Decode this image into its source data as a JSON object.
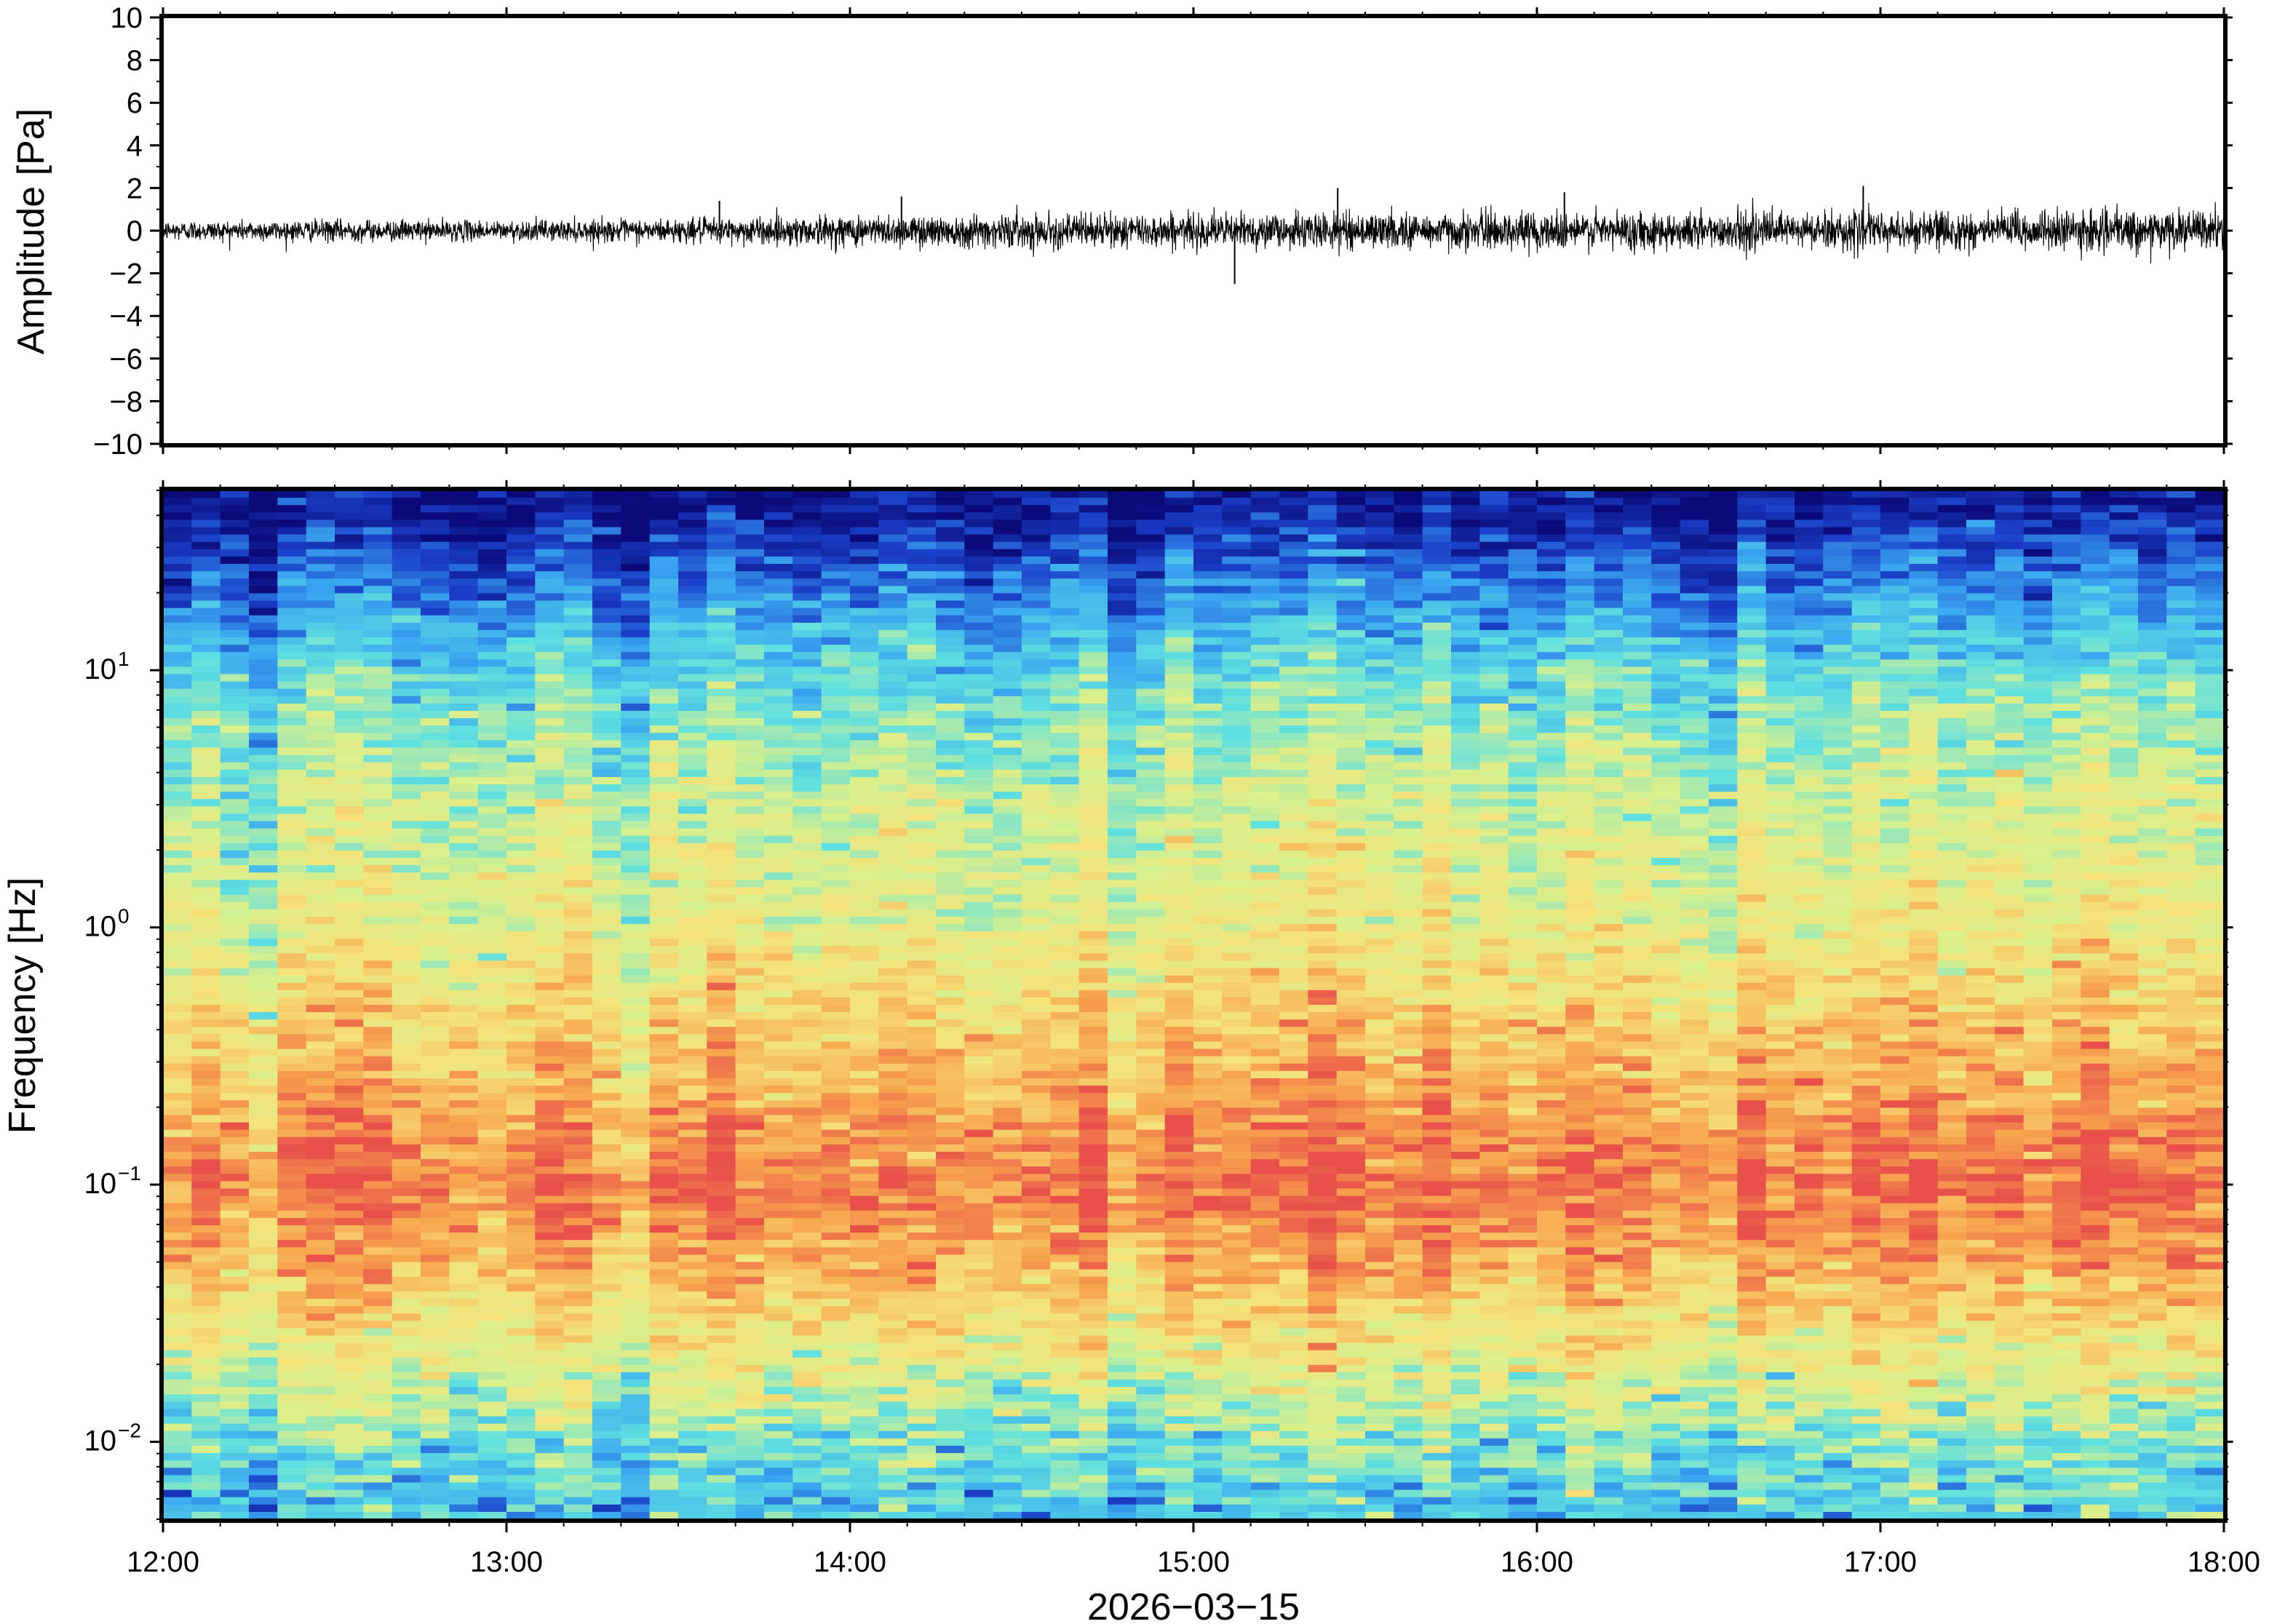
{
  "chart_data": [
    {
      "type": "line",
      "panel": "waveform",
      "ylabel": "Amplitude [Pa]",
      "ylim": [
        -10,
        10
      ],
      "yticks": [
        10,
        8,
        6,
        4,
        2,
        0,
        -2,
        -4,
        -6,
        -8,
        -10
      ],
      "ytick_labels": [
        "10",
        "8",
        "6",
        "4",
        "2",
        "0",
        "−2",
        "−4",
        "−6",
        "−8",
        "−10"
      ],
      "x_range": [
        "12:00",
        "18:00"
      ],
      "series": [
        {
          "envelope_hours": [
            0,
            0.5,
            1,
            1.5,
            2,
            2.5,
            3,
            3.5,
            4,
            4.5,
            5,
            5.5,
            6
          ],
          "envelope_amplitude": [
            0.5,
            0.55,
            0.5,
            0.6,
            0.8,
            0.85,
            0.85,
            0.9,
            0.95,
            0.95,
            0.95,
            1.0,
            1.0
          ],
          "max_spikes": [
            {
              "hour": 1.62,
              "value": 1.4
            },
            {
              "hour": 2.15,
              "value": 1.6
            },
            {
              "hour": 3.12,
              "value": -2.5
            },
            {
              "hour": 3.42,
              "value": 2.0
            },
            {
              "hour": 4.08,
              "value": 1.8
            },
            {
              "hour": 4.95,
              "value": 2.1
            }
          ]
        }
      ]
    },
    {
      "type": "heatmap",
      "panel": "spectrogram",
      "ylabel": "Frequency [Hz]",
      "yscale": "log",
      "ylim": [
        0.005,
        50
      ],
      "yticks": [
        10,
        1,
        0.1,
        0.01
      ],
      "ytick_labels": [
        {
          "base": "10",
          "exp": "1"
        },
        {
          "base": "10",
          "exp": "0"
        },
        {
          "base": "10",
          "exp": "−1"
        },
        {
          "base": "10",
          "exp": "−2"
        }
      ],
      "xlabel": "2026−03−15",
      "x": [
        "12:00",
        "13:00",
        "14:00",
        "15:00",
        "16:00",
        "17:00",
        "18:00"
      ],
      "colormap": [
        "#0a0a78",
        "#1a3fc8",
        "#3aa6f0",
        "#5fe0e0",
        "#d8f08c",
        "#f5e27a",
        "#f8a64e",
        "#e8504a"
      ],
      "intensity_profile": [
        {
          "freq_hz": 0.006,
          "level": 0.35
        },
        {
          "freq_hz": 0.01,
          "level": 0.45
        },
        {
          "freq_hz": 0.02,
          "level": 0.6
        },
        {
          "freq_hz": 0.05,
          "level": 0.82
        },
        {
          "freq_hz": 0.1,
          "level": 0.92
        },
        {
          "freq_hz": 0.3,
          "level": 0.78
        },
        {
          "freq_hz": 1,
          "level": 0.62
        },
        {
          "freq_hz": 3,
          "level": 0.55
        },
        {
          "freq_hz": 10,
          "level": 0.4
        },
        {
          "freq_hz": 20,
          "level": 0.22
        },
        {
          "freq_hz": 45,
          "level": 0.02
        }
      ]
    }
  ]
}
